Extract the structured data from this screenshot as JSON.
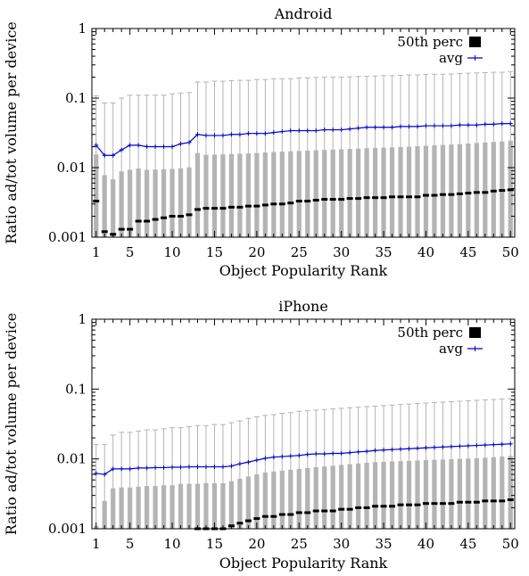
{
  "figure": {
    "ylabel": "Ratio ad/tot volume per device"
  },
  "chart_data": [
    {
      "type": "bar",
      "title": "Android",
      "xlabel": "Object Popularity Rank",
      "ylabel": "Ratio ad/tot volume per device",
      "yscale": "log",
      "ylim": [
        0.001,
        1
      ],
      "xlim": [
        0.5,
        50.5
      ],
      "xticks": [
        1,
        5,
        10,
        15,
        20,
        25,
        30,
        35,
        40,
        45,
        50
      ],
      "xtick_labels": [
        "1",
        "5",
        "10",
        "15",
        "20",
        "25",
        "30",
        "35",
        "40",
        "45",
        "50"
      ],
      "yticks": [
        0.001,
        0.01,
        0.1,
        1
      ],
      "ytick_labels": [
        "0.001",
        "0.01",
        "0.1",
        "1"
      ],
      "legend": {
        "position": "top-right",
        "entries": [
          "50th perc",
          "avg"
        ]
      },
      "x": [
        1,
        2,
        3,
        4,
        5,
        6,
        7,
        8,
        9,
        10,
        11,
        12,
        13,
        14,
        15,
        16,
        17,
        18,
        19,
        20,
        21,
        22,
        23,
        24,
        25,
        26,
        27,
        28,
        29,
        30,
        31,
        32,
        33,
        34,
        35,
        36,
        37,
        38,
        39,
        40,
        41,
        42,
        43,
        44,
        45,
        46,
        47,
        48,
        49,
        50
      ],
      "series": [
        {
          "name": "",
          "kind": "bar-upper-whisker",
          "values": [
            0.108,
            0.085,
            0.085,
            0.1,
            0.11,
            0.11,
            0.11,
            0.11,
            0.11,
            0.115,
            0.118,
            0.12,
            0.17,
            0.17,
            0.175,
            0.175,
            0.178,
            0.18,
            0.18,
            0.185,
            0.185,
            0.19,
            0.19,
            0.19,
            0.195,
            0.195,
            0.198,
            0.2,
            0.2,
            0.2,
            0.202,
            0.205,
            0.205,
            0.208,
            0.21,
            0.21,
            0.212,
            0.215,
            0.215,
            0.218,
            0.22,
            0.22,
            0.222,
            0.225,
            0.228,
            0.23,
            0.232,
            0.235,
            0.235,
            0.24
          ]
        },
        {
          "name": "",
          "kind": "bar",
          "values": [
            0.0155,
            0.0078,
            0.0068,
            0.0088,
            0.0093,
            0.0097,
            0.0093,
            0.0094,
            0.0095,
            0.0096,
            0.0098,
            0.0101,
            0.0162,
            0.0153,
            0.0154,
            0.0155,
            0.0157,
            0.0159,
            0.016,
            0.0162,
            0.0165,
            0.0168,
            0.017,
            0.0172,
            0.0174,
            0.0176,
            0.0178,
            0.018,
            0.0182,
            0.0184,
            0.0186,
            0.0188,
            0.019,
            0.0192,
            0.0194,
            0.0196,
            0.0198,
            0.02,
            0.0203,
            0.0206,
            0.0209,
            0.0212,
            0.0215,
            0.0218,
            0.0222,
            0.0226,
            0.023,
            0.0234,
            0.0238,
            0.0245
          ]
        },
        {
          "name": "50th perc",
          "kind": "marker",
          "values": [
            0.0033,
            0.0012,
            0.0011,
            0.0013,
            0.0013,
            0.0017,
            0.0017,
            0.0018,
            0.0019,
            0.002,
            0.002,
            0.0021,
            0.0025,
            0.0026,
            0.0026,
            0.0026,
            0.0027,
            0.0027,
            0.0028,
            0.0028,
            0.0029,
            0.003,
            0.003,
            0.0031,
            0.0033,
            0.0033,
            0.0034,
            0.0035,
            0.0035,
            0.0035,
            0.0036,
            0.0036,
            0.0037,
            0.0037,
            0.0037,
            0.0038,
            0.0038,
            0.0038,
            0.0038,
            0.004,
            0.004,
            0.0041,
            0.0041,
            0.0042,
            0.0043,
            0.0044,
            0.0044,
            0.0046,
            0.0047,
            0.0048
          ]
        },
        {
          "name": "avg",
          "kind": "line",
          "values": [
            0.021,
            0.015,
            0.015,
            0.018,
            0.021,
            0.021,
            0.02,
            0.02,
            0.02,
            0.02,
            0.022,
            0.023,
            0.03,
            0.029,
            0.029,
            0.029,
            0.03,
            0.03,
            0.031,
            0.031,
            0.031,
            0.032,
            0.033,
            0.034,
            0.034,
            0.034,
            0.034,
            0.035,
            0.035,
            0.035,
            0.036,
            0.037,
            0.038,
            0.038,
            0.038,
            0.038,
            0.039,
            0.039,
            0.039,
            0.04,
            0.04,
            0.04,
            0.04,
            0.041,
            0.041,
            0.041,
            0.042,
            0.042,
            0.043,
            0.043
          ]
        }
      ]
    },
    {
      "type": "bar",
      "title": "iPhone",
      "xlabel": "Object Popularity Rank",
      "ylabel": "Ratio ad/tot volume per device",
      "yscale": "log",
      "ylim": [
        0.001,
        1
      ],
      "xlim": [
        0.5,
        50.5
      ],
      "xticks": [
        1,
        5,
        10,
        15,
        20,
        25,
        30,
        35,
        40,
        45,
        50
      ],
      "xtick_labels": [
        "1",
        "5",
        "10",
        "15",
        "20",
        "25",
        "30",
        "35",
        "40",
        "45",
        "50"
      ],
      "yticks": [
        0.001,
        0.01,
        0.1,
        1
      ],
      "ytick_labels": [
        "0.001",
        "0.01",
        "0.1",
        "1"
      ],
      "legend": {
        "position": "top-right",
        "entries": [
          "50th perc",
          "avg"
        ]
      },
      "x": [
        1,
        2,
        3,
        4,
        5,
        6,
        7,
        8,
        9,
        10,
        11,
        12,
        13,
        14,
        15,
        16,
        17,
        18,
        19,
        20,
        21,
        22,
        23,
        24,
        25,
        26,
        27,
        28,
        29,
        30,
        31,
        32,
        33,
        34,
        35,
        36,
        37,
        38,
        39,
        40,
        41,
        42,
        43,
        44,
        45,
        46,
        47,
        48,
        49,
        50
      ],
      "series": [
        {
          "name": "",
          "kind": "bar-upper-whisker",
          "values": [
            0.016,
            0.016,
            0.022,
            0.024,
            0.024,
            0.025,
            0.026,
            0.026,
            0.027,
            0.028,
            0.028,
            0.029,
            0.03,
            0.03,
            0.031,
            0.031,
            0.033,
            0.035,
            0.038,
            0.04,
            0.042,
            0.043,
            0.045,
            0.046,
            0.048,
            0.049,
            0.05,
            0.051,
            0.052,
            0.053,
            0.054,
            0.055,
            0.056,
            0.057,
            0.058,
            0.059,
            0.06,
            0.061,
            0.062,
            0.063,
            0.064,
            0.065,
            0.066,
            0.067,
            0.068,
            0.069,
            0.07,
            0.071,
            0.072,
            0.073
          ]
        },
        {
          "name": "",
          "kind": "bar",
          "values": [
            0.0011,
            0.0025,
            0.0038,
            0.0039,
            0.0039,
            0.004,
            0.0041,
            0.0041,
            0.0042,
            0.0042,
            0.0044,
            0.0044,
            0.0044,
            0.0045,
            0.0045,
            0.0045,
            0.0048,
            0.0052,
            0.0056,
            0.006,
            0.0064,
            0.0066,
            0.0068,
            0.007,
            0.0072,
            0.0074,
            0.0076,
            0.0078,
            0.008,
            0.0082,
            0.0084,
            0.0086,
            0.0088,
            0.009,
            0.0091,
            0.0092,
            0.0093,
            0.0094,
            0.0095,
            0.0096,
            0.0097,
            0.0098,
            0.0099,
            0.01,
            0.0101,
            0.0102,
            0.0104,
            0.0106,
            0.0108,
            0.011
          ]
        },
        {
          "name": "50th perc",
          "kind": "marker",
          "values": [
            null,
            null,
            null,
            null,
            null,
            null,
            null,
            null,
            null,
            null,
            null,
            null,
            0.001,
            0.001,
            0.001,
            0.001,
            0.0011,
            0.0012,
            0.0013,
            0.0014,
            0.0015,
            0.0015,
            0.0016,
            0.0016,
            0.0017,
            0.0017,
            0.0018,
            0.0018,
            0.0018,
            0.0019,
            0.0019,
            0.002,
            0.002,
            0.0021,
            0.0021,
            0.0021,
            0.0022,
            0.0022,
            0.0022,
            0.0023,
            0.0023,
            0.0023,
            0.0023,
            0.0024,
            0.0024,
            0.0024,
            0.0025,
            0.0025,
            0.0025,
            0.0026
          ]
        },
        {
          "name": "avg",
          "kind": "line",
          "values": [
            0.0062,
            0.006,
            0.0072,
            0.0072,
            0.0072,
            0.0074,
            0.0074,
            0.0075,
            0.0075,
            0.0076,
            0.0076,
            0.0077,
            0.0077,
            0.0077,
            0.0077,
            0.0077,
            0.0079,
            0.0085,
            0.009,
            0.0096,
            0.0102,
            0.0106,
            0.0108,
            0.011,
            0.0112,
            0.0116,
            0.0118,
            0.0118,
            0.012,
            0.012,
            0.0123,
            0.0126,
            0.0128,
            0.0132,
            0.0134,
            0.0136,
            0.0138,
            0.014,
            0.0142,
            0.0144,
            0.0146,
            0.0148,
            0.015,
            0.0152,
            0.0154,
            0.0156,
            0.0158,
            0.016,
            0.0162,
            0.0164
          ]
        }
      ]
    }
  ]
}
